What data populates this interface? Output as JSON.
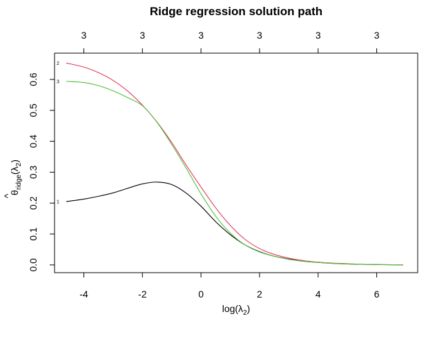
{
  "chart_data": {
    "type": "line",
    "title": "Ridge regression solution path",
    "xlabel": "log(λ2)",
    "ylabel": "θ̂ridge(λ2)",
    "xlim": [
      -5,
      7.4
    ],
    "ylim": [
      -0.025,
      0.685
    ],
    "x_ticks": [
      -4,
      -2,
      0,
      2,
      4,
      6
    ],
    "y_ticks": [
      0.0,
      0.1,
      0.2,
      0.3,
      0.4,
      0.5,
      0.6
    ],
    "x_tick_labels": [
      "-4",
      "-2",
      "0",
      "2",
      "4",
      "6"
    ],
    "y_tick_labels": [
      "0.0",
      "0.1",
      "0.2",
      "0.3",
      "0.4",
      "0.5",
      "0.6"
    ],
    "top_axis_ticks": [
      -4,
      -2,
      0,
      2,
      4,
      6
    ],
    "top_axis_labels": [
      "3",
      "3",
      "3",
      "3",
      "3",
      "3"
    ],
    "grid": false,
    "legend": "none",
    "series": [
      {
        "label": "1",
        "color": "#000000",
        "x": [
          -4.6,
          -4.0,
          -3.5,
          -3.0,
          -2.5,
          -2.0,
          -1.5,
          -1.0,
          -0.5,
          0.0,
          0.5,
          1.0,
          1.5,
          2.0,
          2.5,
          3.0,
          3.5,
          4.0,
          4.5,
          5.0,
          5.5,
          6.0,
          6.5,
          6.9
        ],
        "values": [
          0.205,
          0.213,
          0.222,
          0.233,
          0.248,
          0.262,
          0.268,
          0.26,
          0.232,
          0.19,
          0.14,
          0.098,
          0.065,
          0.043,
          0.028,
          0.019,
          0.012,
          0.008,
          0.005,
          0.003,
          0.002,
          0.001,
          0.0005,
          0.0003
        ]
      },
      {
        "label": "2",
        "color": "#df3b5c",
        "x": [
          -4.6,
          -4.0,
          -3.5,
          -3.0,
          -2.5,
          -2.0,
          -1.5,
          -1.0,
          -0.5,
          0.0,
          0.5,
          1.0,
          1.5,
          2.0,
          2.5,
          3.0,
          3.5,
          4.0,
          4.5,
          5.0,
          5.5,
          6.0,
          6.5,
          6.9
        ],
        "values": [
          0.653,
          0.64,
          0.622,
          0.597,
          0.562,
          0.517,
          0.462,
          0.396,
          0.322,
          0.252,
          0.185,
          0.128,
          0.083,
          0.053,
          0.034,
          0.022,
          0.014,
          0.009,
          0.006,
          0.004,
          0.002,
          0.0012,
          0.0006,
          0.0003
        ]
      },
      {
        "label": "3",
        "color": "#52bf3f",
        "x": [
          -4.6,
          -4.0,
          -3.5,
          -3.0,
          -2.5,
          -2.0,
          -1.5,
          -1.0,
          -0.5,
          0.0,
          0.5,
          1.0,
          1.5,
          2.0,
          2.5,
          3.0,
          3.5,
          4.0,
          4.5,
          5.0,
          5.5,
          6.0,
          6.5,
          6.9
        ],
        "values": [
          0.594,
          0.59,
          0.58,
          0.563,
          0.541,
          0.515,
          0.461,
          0.39,
          0.312,
          0.23,
          0.158,
          0.103,
          0.065,
          0.042,
          0.028,
          0.018,
          0.012,
          0.008,
          0.005,
          0.003,
          0.002,
          0.001,
          0.0005,
          0.0003
        ]
      }
    ]
  }
}
